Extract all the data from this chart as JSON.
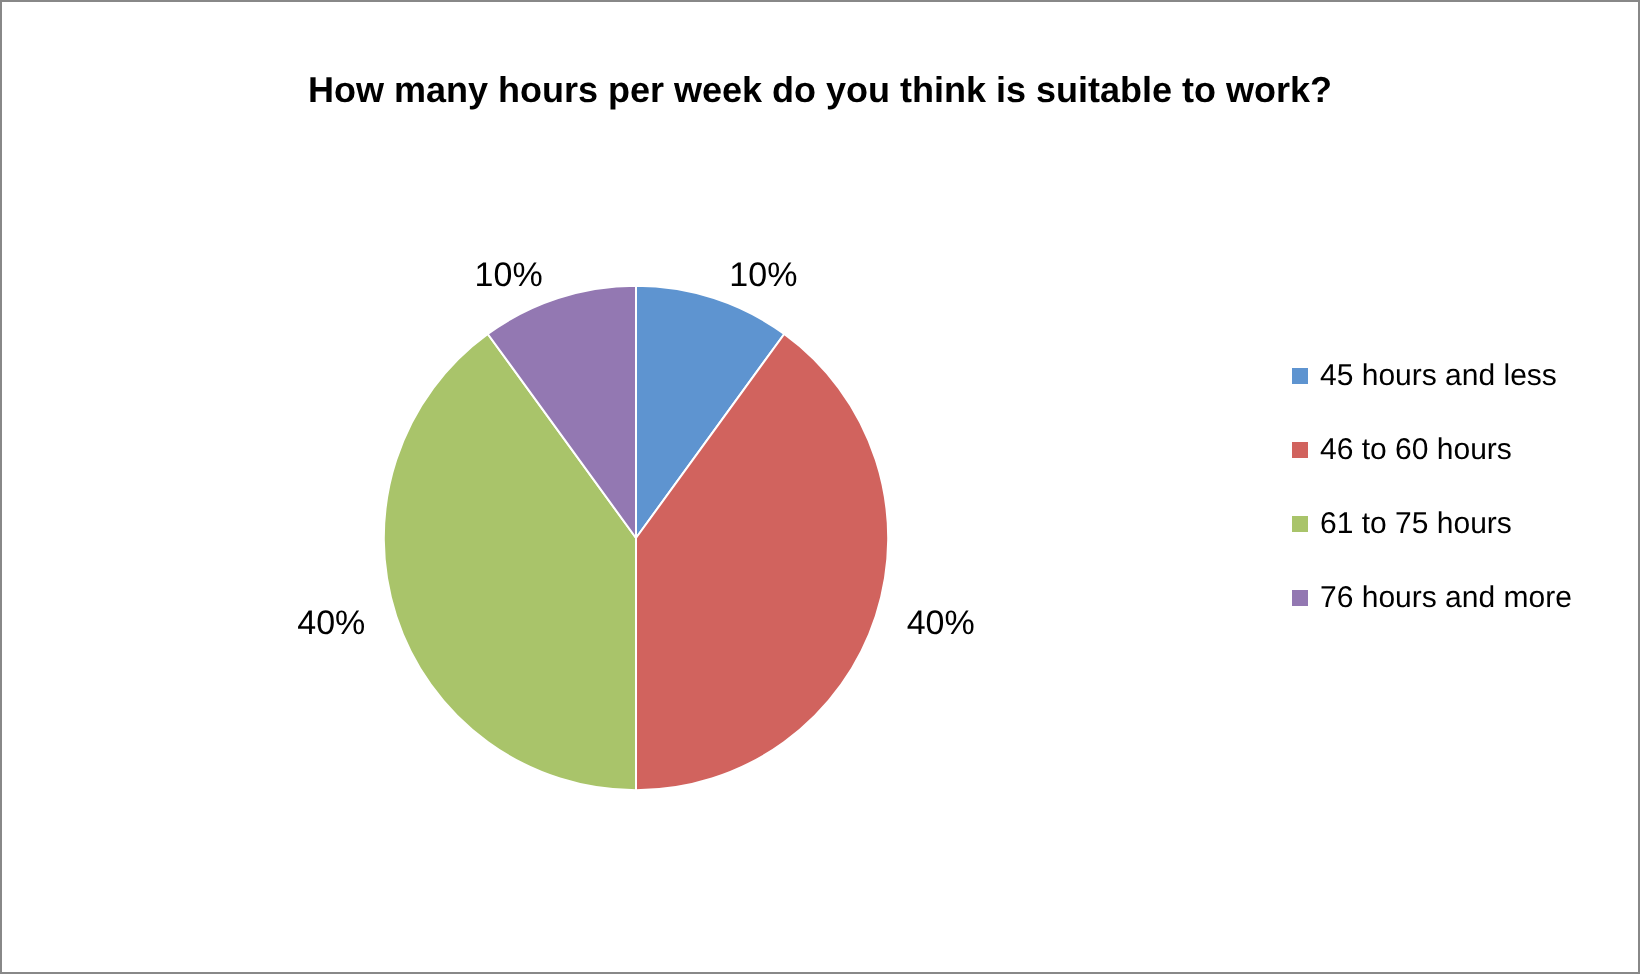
{
  "chart_data": {
    "type": "pie",
    "title": "How many hours per week do you think is suitable to work?",
    "categories": [
      "45 hours and less",
      "46 to 60 hours",
      "61 to 75 hours",
      "76 hours and more"
    ],
    "values": [
      10,
      40,
      40,
      10
    ],
    "value_labels": [
      "10%",
      "40%",
      "40%",
      "10%"
    ],
    "colors": [
      "#5e94d0",
      "#d1635e",
      "#a9c46a",
      "#9378b2"
    ],
    "legend": "right"
  }
}
